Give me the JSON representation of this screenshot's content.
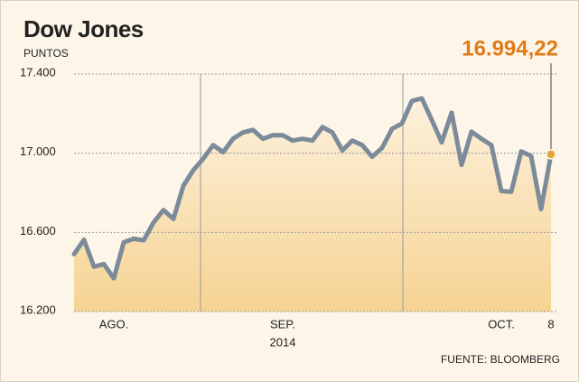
{
  "chart_data": {
    "type": "line",
    "title": "Dow Jones",
    "y_label": "PUNTOS",
    "source": "FUENTE: BLOOMBERG",
    "year": "2014",
    "categories": [
      null,
      null,
      null,
      null,
      "AGO.",
      null,
      null,
      null,
      null,
      null,
      null,
      null,
      null,
      null,
      null,
      null,
      null,
      null,
      null,
      null,
      null,
      "SEP.",
      null,
      null,
      null,
      null,
      null,
      null,
      null,
      null,
      null,
      null,
      null,
      null,
      null,
      null,
      null,
      null,
      null,
      null,
      null,
      null,
      null,
      "OCT.",
      null,
      null,
      null,
      null,
      "8"
    ],
    "values": [
      16490,
      16563,
      16427,
      16440,
      16368,
      16550,
      16568,
      16560,
      16650,
      16713,
      16668,
      16836,
      16914,
      16973,
      17041,
      17005,
      17073,
      17105,
      17118,
      17073,
      17091,
      17091,
      17064,
      17073,
      17064,
      17132,
      17105,
      17014,
      17064,
      17041,
      16982,
      17027,
      17123,
      17150,
      17264,
      17277,
      17168,
      17055,
      17205,
      16941,
      17109,
      17073,
      17041,
      16809,
      16805,
      17009,
      16986,
      16718,
      16994.22
    ],
    "value_labels": [
      null,
      null,
      null,
      null,
      null,
      null,
      null,
      null,
      null,
      null,
      null,
      null,
      null,
      null,
      null,
      null,
      null,
      null,
      null,
      null,
      null,
      null,
      null,
      null,
      null,
      null,
      null,
      null,
      null,
      null,
      null,
      null,
      null,
      null,
      null,
      null,
      null,
      null,
      null,
      null,
      null,
      null,
      null,
      null,
      null,
      null,
      null,
      null,
      "16.994,22"
    ],
    "color": "#7b8b9a",
    "marker_color": "#e8a43c",
    "label_color": "#e07b1a",
    "ylim": [
      16200,
      17400
    ],
    "yticks": [
      {
        "value": 16200,
        "label": "16.200"
      },
      {
        "value": 16600,
        "label": "16.600"
      },
      {
        "value": 17000,
        "label": "17.000"
      },
      {
        "value": 17400,
        "label": "17.400"
      }
    ],
    "grid": true
  }
}
